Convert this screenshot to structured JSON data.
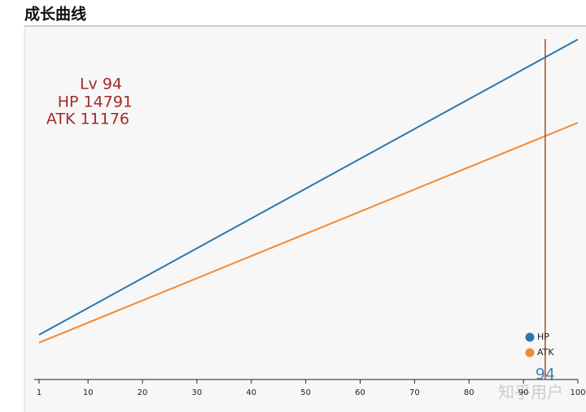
{
  "chart_data": {
    "type": "line",
    "title": "成长曲线",
    "x": [
      1,
      94,
      100
    ],
    "series": [
      {
        "name": "HP",
        "color": "#2a76ad",
        "values": [
          2050,
          14791,
          15613
        ]
      },
      {
        "name": "ATK",
        "color": "#f28a36",
        "values": [
          1690,
          11176,
          11788
        ]
      }
    ],
    "xlim": [
      1,
      100
    ],
    "xticks": [
      1,
      10,
      20,
      30,
      40,
      50,
      60,
      70,
      80,
      90,
      100
    ],
    "ylim": [
      0,
      15630
    ],
    "marker": 94,
    "marker_color": "#a0522d",
    "annotations": [
      "Lv 94",
      "HP 14791",
      "ATK 11176"
    ],
    "annotation_color": "#a52a2a",
    "legend": "lower right",
    "watermark": "知乎用户"
  }
}
